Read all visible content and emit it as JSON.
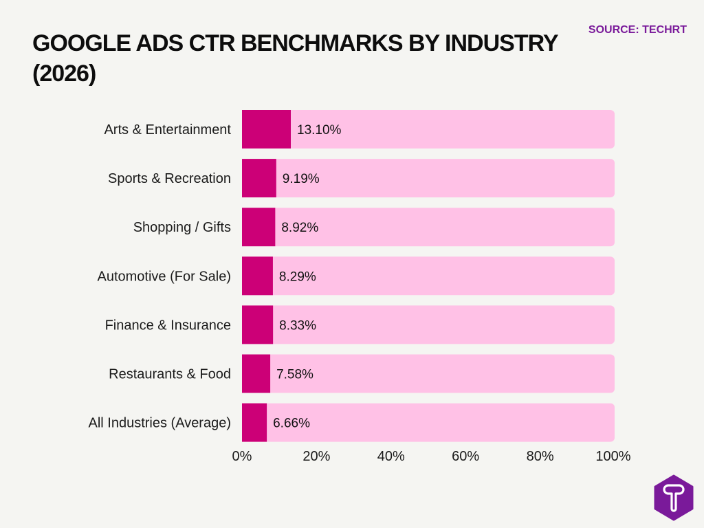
{
  "chart_data": {
    "type": "bar",
    "orientation": "horizontal",
    "title_lines": [
      "GOOGLE ADS CTR BENCHMARKS BY INDUSTRY",
      "(2026)"
    ],
    "source": "SOURCE: TECHRT",
    "categories": [
      "Arts & Entertainment",
      "Sports & Recreation",
      "Shopping / Gifts",
      "Automotive (For Sale)",
      "Finance & Insurance",
      "Restaurants & Food",
      "All Industries (Average)"
    ],
    "values": [
      13.1,
      9.19,
      8.92,
      8.29,
      8.33,
      7.58,
      6.66
    ],
    "value_labels": [
      "13.10%",
      "9.19%",
      "8.92%",
      "8.29%",
      "8.33%",
      "7.58%",
      "6.66%"
    ],
    "xlim": [
      0,
      100
    ],
    "x_ticks": [
      0,
      20,
      40,
      60,
      80,
      100
    ],
    "x_tick_labels": [
      "0%",
      "20%",
      "40%",
      "60%",
      "80%",
      "100%"
    ],
    "grid": false,
    "colors": {
      "bar": "#cc0077",
      "track": "#ffc1e6",
      "logo": "#7a1a9a",
      "source": "#7a1a9a"
    },
    "logo_icon": "techrt-hexagon-t-logo"
  }
}
